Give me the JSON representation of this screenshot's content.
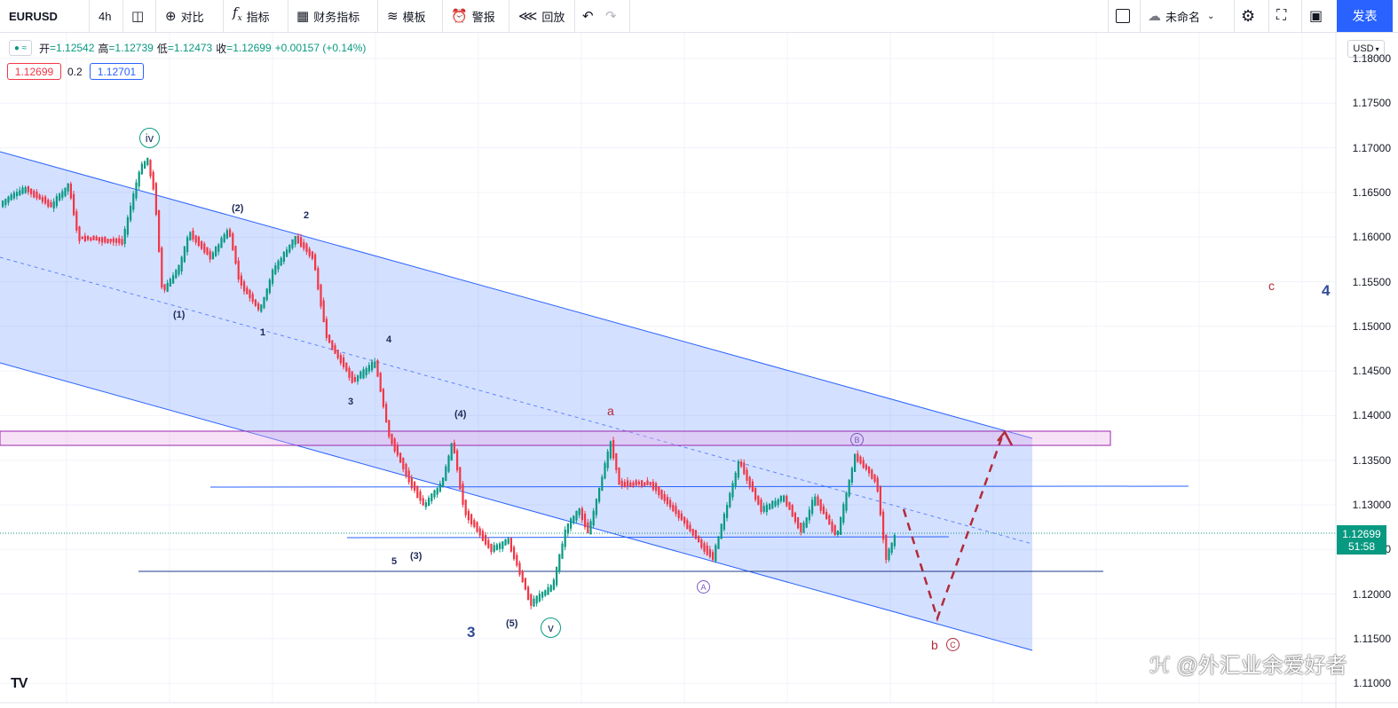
{
  "toolbar": {
    "symbol": "EURUSD",
    "interval": "4h",
    "compare": "对比",
    "indicators": "指标",
    "financials": "财务指标",
    "templates": "模板",
    "alert": "警报",
    "replay": "回放",
    "layout_name": "未命名",
    "publish": "发表"
  },
  "legend": {
    "open_label": "开",
    "open": "=1.12542",
    "high_label": "高",
    "high": "=1.12739",
    "low_label": "低",
    "low": "=1.12473",
    "close_label": "收",
    "close": "=1.12699",
    "change": "+0.00157 (+0.14%)",
    "bid": "1.12699",
    "spread": "0.2",
    "ask": "1.12701"
  },
  "axis": {
    "currency": "USD",
    "ticks": [
      "1.18000",
      "1.17500",
      "1.17000",
      "1.16500",
      "1.16000",
      "1.15500",
      "1.15000",
      "1.14500",
      "1.14000",
      "1.13500",
      "1.13000",
      "1.12500",
      "1.12000",
      "1.11500",
      "1.11000"
    ],
    "last_price": "1.12699",
    "countdown": "51:58"
  },
  "wave_labels": {
    "iv": "iv",
    "v": "v",
    "w1": "(1)",
    "w2": "(2)",
    "w3": "(3)",
    "w4": "(4)",
    "w5": "(5)",
    "s1": "1",
    "s2": "2",
    "s3": "3",
    "s4": "4",
    "s5": "5",
    "big3": "3",
    "big4": "4",
    "a": "a",
    "b": "b",
    "c": "c",
    "A": "A",
    "B": "B",
    "C": "C"
  },
  "watermark": "@外汇业余爱好者",
  "logo": "TV",
  "colors": {
    "up": "#089981",
    "down": "#f23645",
    "channel": "#2962ff",
    "accent": "#2962ff",
    "projection": "#b22a39"
  }
}
